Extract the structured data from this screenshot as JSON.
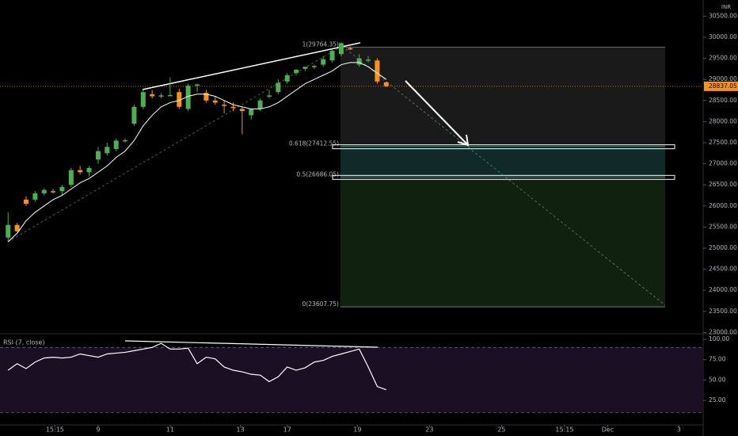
{
  "chart_data": {
    "type": "candlestick",
    "currency": "INR",
    "up_color": "#4caf50",
    "down_color": "#f7931a",
    "ma_color": "#ffffff",
    "xlim": [
      -0.9,
      77.2
    ],
    "xticks": [
      {
        "value": 5.2,
        "label": "15:15"
      },
      {
        "value": 10,
        "label": "9"
      },
      {
        "value": 18,
        "label": "11"
      },
      {
        "value": 25.8,
        "label": "13"
      },
      {
        "value": 31,
        "label": "17"
      },
      {
        "value": 38.8,
        "label": "19"
      },
      {
        "value": 46.8,
        "label": "23"
      },
      {
        "value": 54.8,
        "label": "25"
      },
      {
        "value": 61.8,
        "label": "15:15"
      },
      {
        "value": 66.6,
        "label": "Dec"
      },
      {
        "value": 74.5,
        "label": "3"
      }
    ],
    "ylim": [
      22989,
      30883
    ],
    "yticks": [
      {
        "value": 23000,
        "label": "23000.00"
      },
      {
        "value": 23500,
        "label": "23500.00"
      },
      {
        "value": 24000,
        "label": "24000.00"
      },
      {
        "value": 24500,
        "label": "24500.00"
      },
      {
        "value": 25000,
        "label": "25000.00"
      },
      {
        "value": 25500,
        "label": "25500.00"
      },
      {
        "value": 26000,
        "label": "26000.00"
      },
      {
        "value": 26500,
        "label": "26500.00"
      },
      {
        "value": 27000,
        "label": "27000.00"
      },
      {
        "value": 27500,
        "label": "27500.00"
      },
      {
        "value": 28000,
        "label": "28000.00"
      },
      {
        "value": 28500,
        "label": "28500.00"
      },
      {
        "value": 29000,
        "label": "29000.00"
      },
      {
        "value": 29500,
        "label": "29500.00"
      },
      {
        "value": 30000,
        "label": "30000.00"
      },
      {
        "value": 30500,
        "label": "30500.00"
      }
    ],
    "last_price": 28837.05,
    "open": [
      25250,
      25550,
      26150,
      26150,
      26300,
      26350,
      26350,
      26500,
      26850,
      26800,
      27100,
      27250,
      27350,
      27550,
      27950,
      28350,
      28650,
      28600,
      28620,
      28700,
      28300,
      28850,
      28680,
      28500,
      28400,
      28350,
      28300,
      28150,
      28300,
      28600,
      28700,
      28950,
      29150,
      29250,
      29300,
      29350,
      29450,
      29600,
      29740,
      29350,
      29450,
      29450,
      28930
    ],
    "high": [
      25850,
      25600,
      26230,
      26350,
      26420,
      26400,
      26500,
      26900,
      26950,
      26950,
      27400,
      27500,
      27600,
      27600,
      28400,
      28750,
      28750,
      28680,
      29050,
      28780,
      28900,
      28900,
      28750,
      28600,
      28500,
      28450,
      28350,
      28300,
      28550,
      28750,
      29000,
      29150,
      29250,
      29300,
      29350,
      29550,
      29700,
      29880,
      29770,
      29600,
      29550,
      29500,
      28950
    ],
    "low": [
      25150,
      25380,
      26000,
      26100,
      26250,
      26300,
      26250,
      26450,
      26750,
      26700,
      27000,
      27200,
      27300,
      27500,
      27900,
      28300,
      28550,
      28550,
      28600,
      28300,
      28250,
      28700,
      28450,
      28400,
      28200,
      28250,
      27700,
      28050,
      28250,
      28550,
      28650,
      28900,
      29100,
      29200,
      29250,
      29300,
      29400,
      29550,
      29700,
      29300,
      29400,
      28900,
      28820
    ],
    "close": [
      25550,
      25400,
      26050,
      26300,
      26380,
      26330,
      26450,
      26850,
      26800,
      26900,
      27300,
      27400,
      27550,
      27560,
      28350,
      28700,
      28600,
      28620,
      28630,
      28350,
      28850,
      28880,
      28500,
      28450,
      28380,
      28320,
      28250,
      28300,
      28500,
      28620,
      28920,
      29100,
      29230,
      29300,
      29320,
      29480,
      29680,
      29860,
      29730,
      29500,
      29470,
      28950,
      28840
    ],
    "ma": [
      25150,
      25350,
      25650,
      25850,
      26000,
      26150,
      26250,
      26400,
      26550,
      26650,
      26800,
      26950,
      27150,
      27300,
      27550,
      27900,
      28150,
      28350,
      28450,
      28500,
      28600,
      28650,
      28650,
      28600,
      28500,
      28400,
      28350,
      28300,
      28300,
      28350,
      28450,
      28600,
      28750,
      28900,
      29000,
      29100,
      29200,
      29350,
      29400,
      29400,
      29300,
      29150,
      29000
    ],
    "fib_levels": [
      {
        "value": 29764.35,
        "label": "1(29764.35)"
      },
      {
        "value": 27412.55,
        "label": "0.618(27412.55)"
      },
      {
        "value": 26686.05,
        "label": "0.5(26686.05)"
      },
      {
        "value": 23607.75,
        "label": "0(23607.75)"
      }
    ],
    "rsi": {
      "title": "RSI (7, close)",
      "color": "#ffffff",
      "values": [
        62,
        70,
        64,
        72,
        77,
        78,
        77,
        78,
        82,
        80,
        78,
        82,
        83,
        84,
        86,
        88,
        90,
        95,
        88,
        88,
        89,
        70,
        78,
        76,
        66,
        62,
        60,
        57,
        56,
        48,
        54,
        66,
        62,
        65,
        72,
        74,
        79,
        82,
        85,
        88,
        66,
        42,
        38
      ],
      "ylim": [
        -4.2,
        103.9
      ],
      "yticks": [
        {
          "value": 100,
          "label": "100.00"
        },
        {
          "value": 75,
          "label": "75.00"
        },
        {
          "value": 50,
          "label": "50.00"
        },
        {
          "value": 25,
          "label": "25.00"
        }
      ],
      "bands": [
        90,
        10
      ]
    }
  }
}
